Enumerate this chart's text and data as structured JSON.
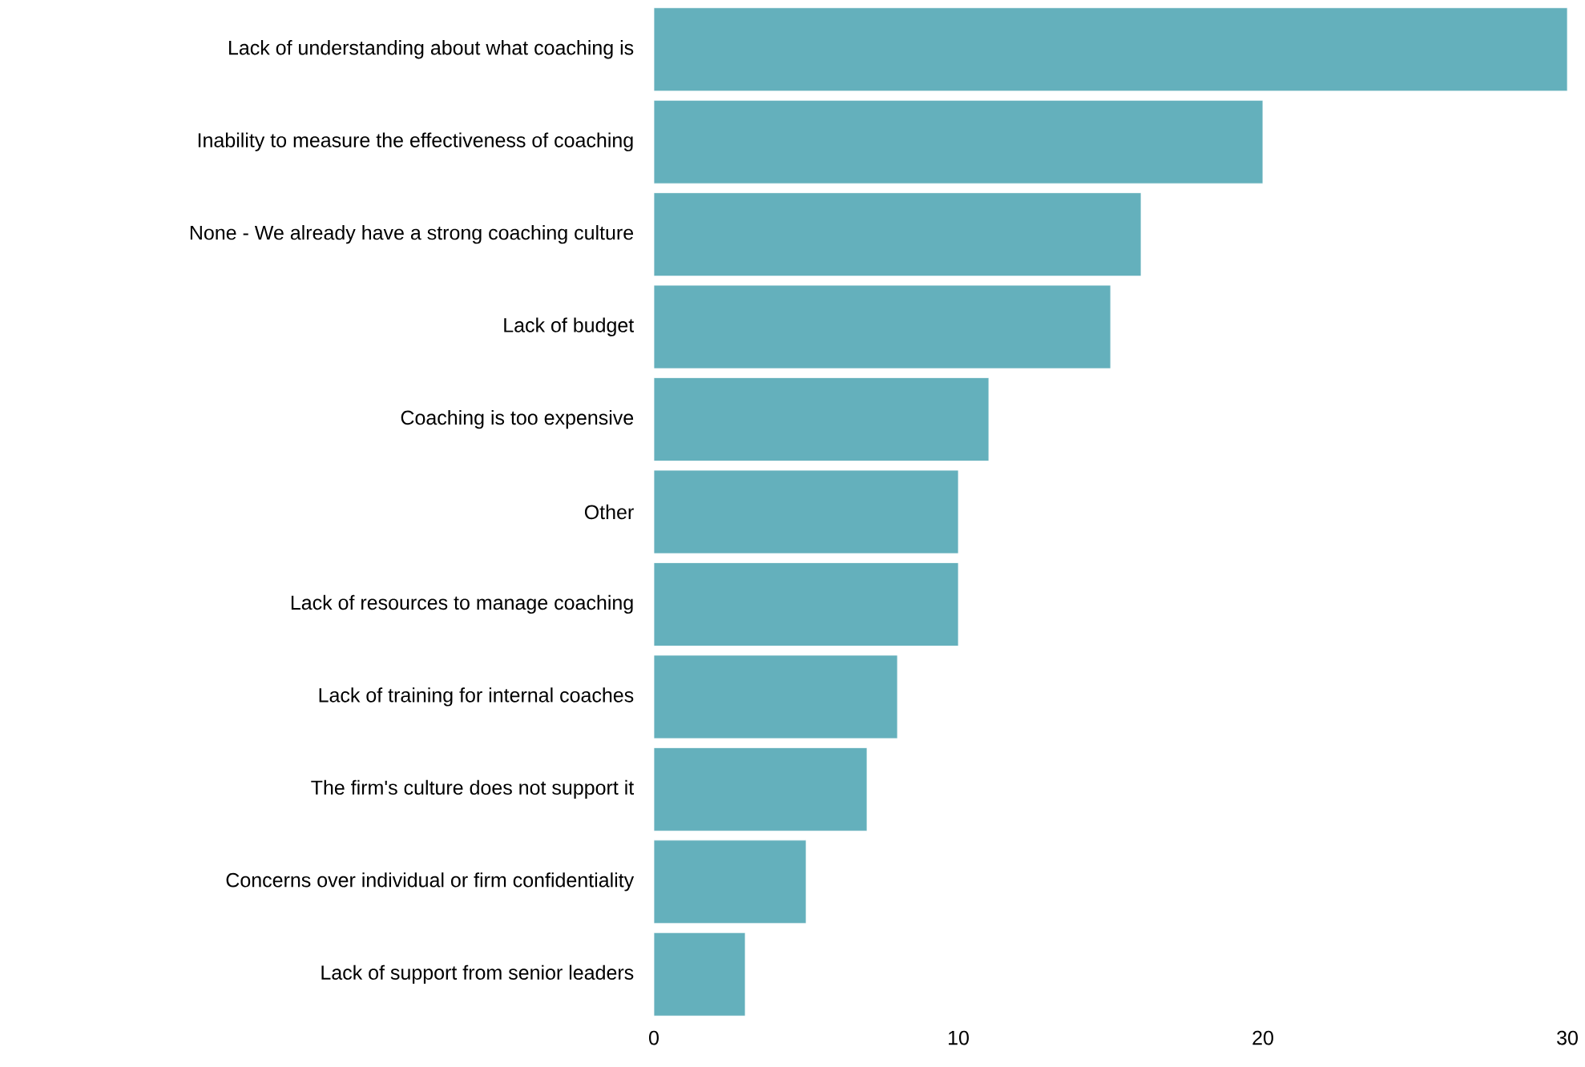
{
  "chart_data": {
    "type": "bar",
    "orientation": "horizontal",
    "color": "#64b0bc",
    "categories": [
      "Lack of understanding about what coaching is",
      "Inability to measure the effectiveness of coaching",
      "None - We already have a strong coaching culture",
      "Lack of budget",
      "Coaching is too expensive",
      "Other",
      "Lack of resources to manage coaching",
      "Lack of training for internal coaches",
      "The firm's culture does not support it",
      "Concerns over individual or firm confidentiality",
      "Lack of support from senior leaders"
    ],
    "values": [
      30,
      20,
      16,
      15,
      11,
      10,
      10,
      8,
      7,
      5,
      3
    ],
    "xlim": [
      0,
      30
    ],
    "xticks": [
      0,
      10,
      20,
      30
    ]
  }
}
